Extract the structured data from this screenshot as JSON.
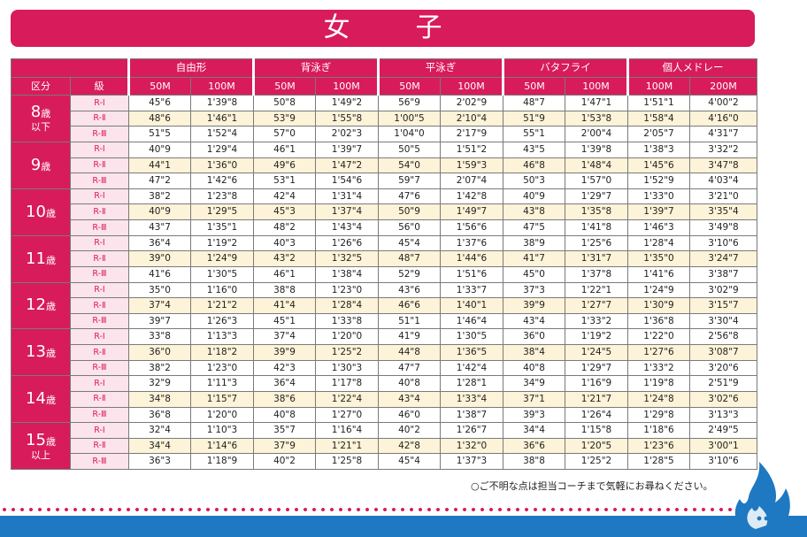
{
  "title": "女　子",
  "header": {
    "events": [
      "自由形",
      "背泳ぎ",
      "平泳ぎ",
      "バタフライ",
      "個人メドレー"
    ],
    "col_group": "区分",
    "col_level": "級",
    "distances": [
      [
        "50M",
        "100M"
      ],
      [
        "50M",
        "100M"
      ],
      [
        "50M",
        "100M"
      ],
      [
        "50M",
        "100M"
      ],
      [
        "100M",
        "200M"
      ]
    ]
  },
  "groups": [
    {
      "age": "8",
      "unit": "歳",
      "sub": "以下",
      "rows": [
        {
          "level": "R-Ⅰ",
          "times": [
            "45\"6",
            "1'39\"8",
            "50\"8",
            "1'49\"2",
            "56\"9",
            "2'02\"9",
            "48\"7",
            "1'47\"1",
            "1'51\"1",
            "4'00\"2"
          ]
        },
        {
          "level": "R-Ⅱ",
          "times": [
            "48\"6",
            "1'46\"1",
            "53\"9",
            "1'55\"8",
            "1'00\"5",
            "2'10\"4",
            "51\"9",
            "1'53\"8",
            "1'58\"4",
            "4'16\"0"
          ]
        },
        {
          "level": "R-Ⅲ",
          "times": [
            "51\"5",
            "1'52\"4",
            "57\"0",
            "2'02\"3",
            "1'04\"0",
            "2'17\"9",
            "55\"1",
            "2'00\"4",
            "2'05\"7",
            "4'31\"7"
          ]
        }
      ]
    },
    {
      "age": "9",
      "unit": "歳",
      "sub": "",
      "rows": [
        {
          "level": "R-Ⅰ",
          "times": [
            "40\"9",
            "1'29\"4",
            "46\"1",
            "1'39\"7",
            "50\"5",
            "1'51\"2",
            "43\"5",
            "1'39\"8",
            "1'38\"3",
            "3'32\"2"
          ]
        },
        {
          "level": "R-Ⅱ",
          "times": [
            "44\"1",
            "1'36\"0",
            "49\"6",
            "1'47\"2",
            "54\"0",
            "1'59\"3",
            "46\"8",
            "1'48\"4",
            "1'45\"6",
            "3'47\"8"
          ]
        },
        {
          "level": "R-Ⅲ",
          "times": [
            "47\"2",
            "1'42\"6",
            "53\"1",
            "1'54\"6",
            "59\"7",
            "2'07\"4",
            "50\"3",
            "1'57\"0",
            "1'52\"9",
            "4'03\"4"
          ]
        }
      ]
    },
    {
      "age": "10",
      "unit": "歳",
      "sub": "",
      "rows": [
        {
          "level": "R-Ⅰ",
          "times": [
            "38\"2",
            "1'23\"8",
            "42\"4",
            "1'31\"4",
            "47\"6",
            "1'42\"8",
            "40\"9",
            "1'29\"7",
            "1'33\"0",
            "3'21\"0"
          ]
        },
        {
          "level": "R-Ⅱ",
          "times": [
            "40\"9",
            "1'29\"5",
            "45\"3",
            "1'37\"4",
            "50\"9",
            "1'49\"7",
            "43\"8",
            "1'35\"8",
            "1'39\"7",
            "3'35\"4"
          ]
        },
        {
          "level": "R-Ⅲ",
          "times": [
            "43\"7",
            "1'35\"1",
            "48\"2",
            "1'43\"4",
            "56\"0",
            "1'56\"6",
            "47\"5",
            "1'41\"8",
            "1'46\"3",
            "3'49\"8"
          ]
        }
      ]
    },
    {
      "age": "11",
      "unit": "歳",
      "sub": "",
      "rows": [
        {
          "level": "R-Ⅰ",
          "times": [
            "36\"4",
            "1'19\"2",
            "40\"3",
            "1'26\"6",
            "45\"4",
            "1'37\"6",
            "38\"9",
            "1'25\"6",
            "1'28\"4",
            "3'10\"6"
          ]
        },
        {
          "level": "R-Ⅱ",
          "times": [
            "39\"0",
            "1'24\"9",
            "43\"2",
            "1'32\"5",
            "48\"7",
            "1'44\"6",
            "41\"7",
            "1'31\"7",
            "1'35\"0",
            "3'24\"7"
          ]
        },
        {
          "level": "R-Ⅲ",
          "times": [
            "41\"6",
            "1'30\"5",
            "46\"1",
            "1'38\"4",
            "52\"9",
            "1'51\"6",
            "45\"0",
            "1'37\"8",
            "1'41\"6",
            "3'38\"7"
          ]
        }
      ]
    },
    {
      "age": "12",
      "unit": "歳",
      "sub": "",
      "rows": [
        {
          "level": "R-Ⅰ",
          "times": [
            "35\"0",
            "1'16\"0",
            "38\"8",
            "1'23\"0",
            "43\"6",
            "1'33\"7",
            "37\"3",
            "1'22\"1",
            "1'24\"9",
            "3'02\"9"
          ]
        },
        {
          "level": "R-Ⅱ",
          "times": [
            "37\"4",
            "1'21\"2",
            "41\"4",
            "1'28\"4",
            "46\"6",
            "1'40\"1",
            "39\"9",
            "1'27\"7",
            "1'30\"9",
            "3'15\"7"
          ]
        },
        {
          "level": "R-Ⅲ",
          "times": [
            "39\"7",
            "1'26\"3",
            "45\"1",
            "1'33\"8",
            "51\"1",
            "1'46\"4",
            "43\"4",
            "1'33\"2",
            "1'36\"8",
            "3'30\"4"
          ]
        }
      ]
    },
    {
      "age": "13",
      "unit": "歳",
      "sub": "",
      "rows": [
        {
          "level": "R-Ⅰ",
          "times": [
            "33\"8",
            "1'13\"3",
            "37\"4",
            "1'20\"0",
            "41\"9",
            "1'30\"5",
            "36\"0",
            "1'19\"2",
            "1'22\"0",
            "2'56\"8"
          ]
        },
        {
          "level": "R-Ⅱ",
          "times": [
            "36\"0",
            "1'18\"2",
            "39\"9",
            "1'25\"2",
            "44\"8",
            "1'36\"5",
            "38\"4",
            "1'24\"5",
            "1'27\"6",
            "3'08\"7"
          ]
        },
        {
          "level": "R-Ⅲ",
          "times": [
            "38\"2",
            "1'23\"0",
            "42\"3",
            "1'30\"3",
            "47\"7",
            "1'42\"4",
            "40\"8",
            "1'29\"7",
            "1'33\"2",
            "3'20\"6"
          ]
        }
      ]
    },
    {
      "age": "14",
      "unit": "歳",
      "sub": "",
      "rows": [
        {
          "level": "R-Ⅰ",
          "times": [
            "32\"9",
            "1'11\"3",
            "36\"4",
            "1'17\"8",
            "40\"8",
            "1'28\"1",
            "34\"9",
            "1'16\"9",
            "1'19\"8",
            "2'51\"9"
          ]
        },
        {
          "level": "R-Ⅱ",
          "times": [
            "34\"8",
            "1'15\"7",
            "38\"6",
            "1'22\"4",
            "43\"4",
            "1'33\"4",
            "37\"1",
            "1'21\"7",
            "1'24\"8",
            "3'02\"6"
          ]
        },
        {
          "level": "R-Ⅲ",
          "times": [
            "36\"8",
            "1'20\"0",
            "40\"8",
            "1'27\"0",
            "46\"0",
            "1'38\"7",
            "39\"3",
            "1'26\"4",
            "1'29\"8",
            "3'13\"3"
          ]
        }
      ]
    },
    {
      "age": "15",
      "unit": "歳",
      "sub": "以上",
      "rows": [
        {
          "level": "R-Ⅰ",
          "times": [
            "32\"4",
            "1'10\"3",
            "35\"7",
            "1'16\"4",
            "40\"2",
            "1'26\"7",
            "34\"4",
            "1'15\"8",
            "1'18\"6",
            "2'49\"5"
          ]
        },
        {
          "level": "R-Ⅱ",
          "times": [
            "34\"4",
            "1'14\"6",
            "37\"9",
            "1'21\"1",
            "42\"8",
            "1'32\"0",
            "36\"6",
            "1'20\"5",
            "1'23\"6",
            "3'00\"1"
          ]
        },
        {
          "level": "R-Ⅲ",
          "times": [
            "36\"3",
            "1'18\"9",
            "40\"2",
            "1'25\"8",
            "45\"4",
            "1'37\"3",
            "38\"8",
            "1'25\"2",
            "1'28\"5",
            "3'10\"6"
          ]
        }
      ]
    }
  ],
  "footnote": "○ご不明な点は担当コーチまで気軽にお尋ねください。",
  "colors": {
    "accent": "#d81b5b",
    "level_bg": "#fce4ec",
    "alt_row": "#fdf3d8",
    "wave": "#1e78c2"
  },
  "mascot_icon": "flame-mascot-icon"
}
